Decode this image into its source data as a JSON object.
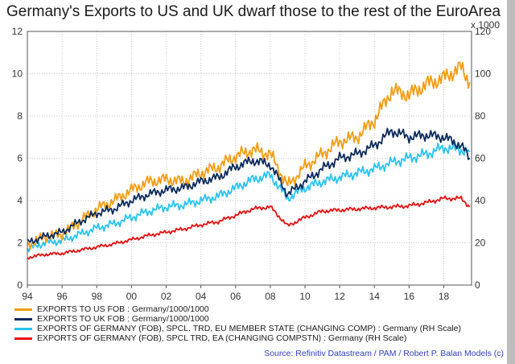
{
  "title": "Germany's Exports to US and UK dwarf those to the rest of the EuroArea",
  "source": "Source: Refinitiv Datastream / PAM / Robert P. Balan Models (c)",
  "chart_data": {
    "type": "line",
    "title": "Germany's Exports to US and UK dwarf those to the rest of the EuroArea",
    "x_range": [
      1994,
      2019.6
    ],
    "x_tick_values": [
      1994,
      1996,
      1998,
      2000,
      2002,
      2004,
      2006,
      2008,
      2010,
      2012,
      2014,
      2016,
      2018
    ],
    "x_tick_labels": [
      "94",
      "96",
      "98",
      "00",
      "02",
      "04",
      "06",
      "08",
      "10",
      "12",
      "14",
      "16",
      "18"
    ],
    "y_left": {
      "range": [
        0,
        12
      ],
      "ticks": [
        0,
        2,
        4,
        6,
        8,
        10,
        12
      ]
    },
    "y_right": {
      "range": [
        0,
        120
      ],
      "ticks": [
        0,
        20,
        40,
        60,
        80,
        100,
        120
      ],
      "units_label": "x 1000"
    },
    "grid": true,
    "legend_position": "bottom",
    "series": [
      {
        "name": "EXPORTS TO US FOB : Germany/1000/1000",
        "color": "#f39c12",
        "axis": "left",
        "points": [
          [
            1994,
            1.9
          ],
          [
            1995,
            2.3
          ],
          [
            1996,
            2.4
          ],
          [
            1997,
            3.0
          ],
          [
            1998,
            3.6
          ],
          [
            1999,
            4.0
          ],
          [
            2000,
            4.5
          ],
          [
            2001,
            4.9
          ],
          [
            2002,
            5.0
          ],
          [
            2003,
            4.9
          ],
          [
            2004,
            5.3
          ],
          [
            2005,
            5.6
          ],
          [
            2006,
            6.1
          ],
          [
            2007,
            6.4
          ],
          [
            2008,
            6.2
          ],
          [
            2009,
            4.7
          ],
          [
            2010,
            5.6
          ],
          [
            2011,
            6.2
          ],
          [
            2012,
            6.8
          ],
          [
            2013,
            7.0
          ],
          [
            2014,
            7.8
          ],
          [
            2015,
            9.2
          ],
          [
            2016,
            9.0
          ],
          [
            2017,
            9.5
          ],
          [
            2018,
            9.8
          ],
          [
            2019,
            10.3
          ],
          [
            2019.5,
            9.6
          ]
        ]
      },
      {
        "name": "EXPORTS TO UK FOB : Germany/1000/1000",
        "color": "#0b2a5b",
        "axis": "left",
        "points": [
          [
            1994,
            2.0
          ],
          [
            1995,
            2.3
          ],
          [
            1996,
            2.5
          ],
          [
            1997,
            3.0
          ],
          [
            1998,
            3.4
          ],
          [
            1999,
            3.6
          ],
          [
            2000,
            4.0
          ],
          [
            2001,
            4.3
          ],
          [
            2002,
            4.5
          ],
          [
            2003,
            4.6
          ],
          [
            2004,
            4.9
          ],
          [
            2005,
            5.1
          ],
          [
            2006,
            5.6
          ],
          [
            2007,
            5.9
          ],
          [
            2008,
            5.7
          ],
          [
            2009,
            4.3
          ],
          [
            2010,
            4.9
          ],
          [
            2011,
            5.5
          ],
          [
            2012,
            6.0
          ],
          [
            2013,
            6.2
          ],
          [
            2014,
            6.6
          ],
          [
            2015,
            7.3
          ],
          [
            2016,
            7.0
          ],
          [
            2017,
            7.1
          ],
          [
            2018,
            7.0
          ],
          [
            2019,
            6.6
          ],
          [
            2019.5,
            6.0
          ]
        ]
      },
      {
        "name": "EXPORTS OF GERMANY (FOB), SPCL. TRD, EU MEMBER STATE (CHANGING COMP) : Germany (RH Scale)",
        "color": "#29c3f0",
        "axis": "right",
        "points": [
          [
            1994,
            17
          ],
          [
            1995,
            20
          ],
          [
            1996,
            21
          ],
          [
            1997,
            24
          ],
          [
            1998,
            27
          ],
          [
            1999,
            29
          ],
          [
            2000,
            32
          ],
          [
            2001,
            35
          ],
          [
            2002,
            37
          ],
          [
            2003,
            38
          ],
          [
            2004,
            40
          ],
          [
            2005,
            42
          ],
          [
            2006,
            46
          ],
          [
            2007,
            50
          ],
          [
            2008,
            52
          ],
          [
            2009,
            41
          ],
          [
            2010,
            46
          ],
          [
            2011,
            49
          ],
          [
            2012,
            51
          ],
          [
            2013,
            53
          ],
          [
            2014,
            55
          ],
          [
            2015,
            58
          ],
          [
            2016,
            60
          ],
          [
            2017,
            62
          ],
          [
            2018,
            65
          ],
          [
            2019,
            64
          ],
          [
            2019.5,
            63
          ]
        ]
      },
      {
        "name": "EXPORTS OF GERMANY (FOB), SPCL TRD, EA (CHANGING COMPSTN) : Germany (RH Scale)",
        "color": "#e81010",
        "axis": "right",
        "points": [
          [
            1994,
            13
          ],
          [
            1995,
            14.5
          ],
          [
            1996,
            15
          ],
          [
            1997,
            16.5
          ],
          [
            1998,
            18
          ],
          [
            1999,
            19.5
          ],
          [
            2000,
            21.5
          ],
          [
            2001,
            23.5
          ],
          [
            2002,
            25
          ],
          [
            2003,
            26.5
          ],
          [
            2004,
            28.5
          ],
          [
            2005,
            30
          ],
          [
            2006,
            33
          ],
          [
            2007,
            36
          ],
          [
            2008,
            37
          ],
          [
            2009,
            28
          ],
          [
            2010,
            32
          ],
          [
            2011,
            35
          ],
          [
            2012,
            35.5
          ],
          [
            2013,
            36
          ],
          [
            2014,
            36.5
          ],
          [
            2015,
            37
          ],
          [
            2016,
            37.5
          ],
          [
            2017,
            39
          ],
          [
            2018,
            41
          ],
          [
            2019,
            41
          ],
          [
            2019.5,
            37
          ]
        ]
      }
    ]
  }
}
